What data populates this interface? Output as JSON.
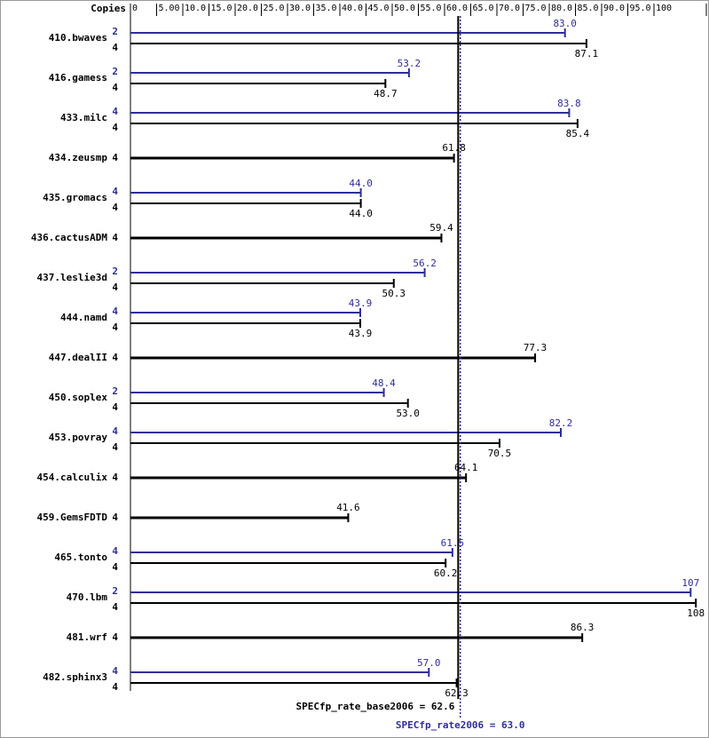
{
  "chart_data": {
    "type": "spec-bar",
    "copies_label": "Copies",
    "xlim": [
      0,
      110
    ],
    "xticks": [
      0,
      {
        "value": 5,
        "label": "5.00"
      },
      {
        "value": 10,
        "label": "10.0"
      },
      {
        "value": 15,
        "label": "15.0"
      },
      {
        "value": 20,
        "label": "20.0"
      },
      {
        "value": 25,
        "label": "25.0"
      },
      {
        "value": 30,
        "label": "30.0"
      },
      {
        "value": 35,
        "label": "35.0"
      },
      {
        "value": 40,
        "label": "40.0"
      },
      {
        "value": 45,
        "label": "45.0"
      },
      {
        "value": 50,
        "label": "50.0"
      },
      {
        "value": 55,
        "label": "55.0"
      },
      {
        "value": 60,
        "label": "60.0"
      },
      {
        "value": 65,
        "label": "65.0"
      },
      {
        "value": 70,
        "label": "70.0"
      },
      {
        "value": 75,
        "label": "75.0"
      },
      {
        "value": 80,
        "label": "80.0"
      },
      {
        "value": 85,
        "label": "85.0"
      },
      {
        "value": 90,
        "label": "90.0"
      },
      {
        "value": 95,
        "label": "95.0"
      },
      100,
      110
    ],
    "categories": [
      "410.bwaves",
      "416.gamess",
      "433.milc",
      "434.zeusmp",
      "435.gromacs",
      "436.cactusADM",
      "437.leslie3d",
      "444.namd",
      "447.dealII",
      "450.soplex",
      "453.povray",
      "454.calculix",
      "459.GemsFDTD",
      "465.tonto",
      "470.lbm",
      "481.wrf",
      "482.sphinx3"
    ],
    "series": [
      {
        "color": "#2e2e9a",
        "copies": [
          2,
          2,
          4,
          null,
          4,
          null,
          2,
          4,
          null,
          2,
          4,
          null,
          null,
          4,
          2,
          null,
          4
        ],
        "values": [
          83.0,
          53.2,
          83.8,
          null,
          44.0,
          null,
          56.2,
          43.9,
          null,
          48.4,
          82.2,
          null,
          null,
          61.5,
          107,
          null,
          57.0
        ],
        "value_labels": [
          "83.0",
          "53.2",
          "83.8",
          null,
          "44.0",
          null,
          "56.2",
          "43.9",
          null,
          "48.4",
          "82.2",
          null,
          null,
          "61.5",
          "107",
          null,
          "57.0"
        ]
      },
      {
        "color": "#000000",
        "copies": [
          4,
          4,
          4,
          4,
          4,
          4,
          4,
          4,
          4,
          4,
          4,
          4,
          4,
          4,
          4,
          4,
          4
        ],
        "values": [
          87.1,
          48.7,
          85.4,
          61.8,
          44.0,
          59.4,
          50.3,
          43.9,
          77.3,
          53.0,
          70.5,
          64.1,
          41.6,
          60.2,
          108,
          86.3,
          62.3
        ],
        "value_labels": [
          "87.1",
          "48.7",
          "85.4",
          "61.8",
          "44.0",
          "59.4",
          "50.3",
          "43.9",
          "77.3",
          "53.0",
          "70.5",
          "64.1",
          "41.6",
          "60.2",
          "108",
          "86.3",
          "62.3"
        ]
      }
    ],
    "references": [
      {
        "label": "SPECfp_rate_base2006 = 62.6",
        "value": 62.6,
        "color": "#000000",
        "dotted": false
      },
      {
        "label": "SPECfp_rate2006 = 63.0",
        "value": 63.0,
        "color": "#2e2e9a",
        "dotted": true
      }
    ]
  }
}
